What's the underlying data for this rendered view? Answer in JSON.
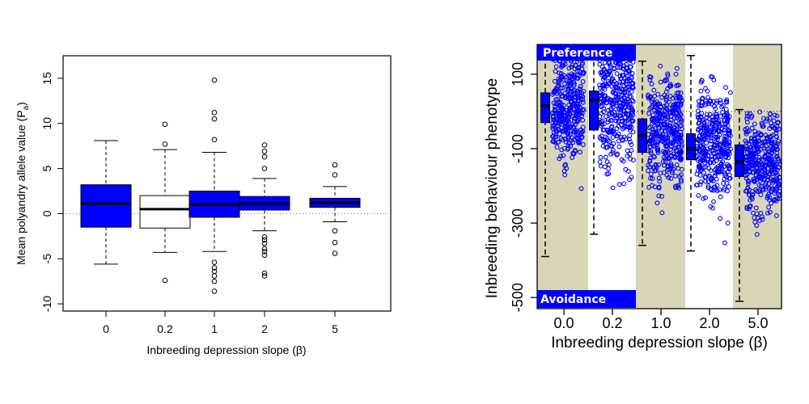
{
  "chart_data": [
    {
      "type": "box",
      "xlabel": "Inbreeding depression slope (β)",
      "ylabel": "Mean polyandry allele value (P",
      "ylabel_sub": "a",
      "ylabel_end": ")",
      "categories": [
        "0",
        "0.2",
        "1",
        "2",
        "5"
      ],
      "yticks": [
        -10,
        -5,
        0,
        5,
        10,
        15
      ],
      "ylim": [
        -10.8,
        17.5
      ],
      "reference_line": 0,
      "box_colors": [
        "#0000ff",
        "#ffffff",
        "#0000ff",
        "#0000ff",
        "#0000ff"
      ],
      "boxes": [
        {
          "whisker_low": -5.6,
          "q1": -1.5,
          "median": 1.1,
          "q3": 3.2,
          "whisker_high": 8.1,
          "outliers": []
        },
        {
          "whisker_low": -4.3,
          "q1": -1.6,
          "median": 0.5,
          "q3": 2.0,
          "whisker_high": 7.1,
          "outliers": [
            9.9,
            7.7,
            -7.4
          ]
        },
        {
          "whisker_low": -4.2,
          "q1": -0.4,
          "median": 1.0,
          "q3": 2.5,
          "whisker_high": 6.8,
          "outliers": [
            14.8,
            11.2,
            10.5,
            8.2,
            -5.4,
            -6.0,
            -6.4,
            -6.9,
            -7.5,
            -8.6
          ]
        },
        {
          "whisker_low": -1.9,
          "q1": 0.4,
          "median": 1.1,
          "q3": 1.9,
          "whisker_high": 3.9,
          "outliers": [
            7.6,
            6.9,
            6.3,
            5.0,
            -2.6,
            -2.9,
            -3.3,
            -3.9,
            -4.2,
            -4.6,
            -6.6,
            -6.9
          ]
        },
        {
          "whisker_low": -0.9,
          "q1": 0.7,
          "median": 1.2,
          "q3": 1.7,
          "whisker_high": 3.0,
          "outliers": [
            5.4,
            4.3,
            -1.9,
            -3.2,
            -4.4
          ]
        }
      ]
    },
    {
      "type": "box+jitter",
      "xlabel": "Inbreeding depression slope (β)",
      "ylabel": "Inbreeding behaviour phenotype",
      "categories": [
        "0.0",
        "0.2",
        "1.0",
        "2.0",
        "5.0"
      ],
      "yticks": [
        100,
        -100,
        -300,
        -500
      ],
      "ylim": [
        -530,
        180
      ],
      "reference_line": 0,
      "top_label": "Preference",
      "bottom_label": "Avoidance",
      "colors": {
        "box": "#0000ff",
        "points": "#0000ff",
        "band": "#d9d6b7",
        "tag": "#0000ff"
      },
      "boxes": [
        {
          "whisker_low": -390,
          "q1": -30,
          "median": 15,
          "q3": 50,
          "whisker_high": 150
        },
        {
          "whisker_low": -330,
          "q1": -50,
          "median": 30,
          "q3": 55,
          "whisker_high": 155
        },
        {
          "whisker_low": -360,
          "q1": -110,
          "median": -65,
          "q3": -20,
          "whisker_high": 135
        },
        {
          "whisker_low": -375,
          "q1": -130,
          "median": -100,
          "q3": -60,
          "whisker_high": 150
        },
        {
          "whisker_low": -510,
          "q1": -175,
          "median": -135,
          "q3": -90,
          "whisker_high": 5
        }
      ],
      "point_distributions": [
        {
          "mean": 10,
          "sd": 75,
          "min": -390,
          "max": 155,
          "n": 380
        },
        {
          "mean": 20,
          "sd": 85,
          "min": -335,
          "max": 160,
          "n": 380
        },
        {
          "mean": -60,
          "sd": 75,
          "min": -345,
          "max": 140,
          "n": 380
        },
        {
          "mean": -90,
          "sd": 70,
          "min": -380,
          "max": 150,
          "n": 380
        },
        {
          "mean": -135,
          "sd": 65,
          "min": -515,
          "max": 0,
          "n": 380
        }
      ]
    }
  ]
}
